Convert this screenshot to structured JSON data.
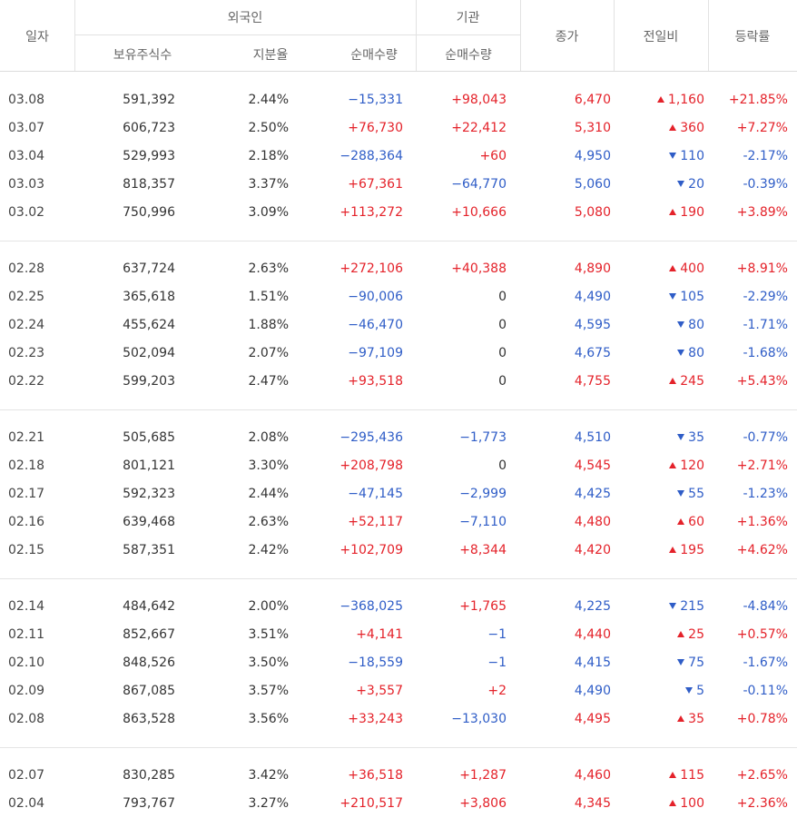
{
  "header": {
    "date": "일자",
    "foreign": "외국인",
    "institution": "기관",
    "holdings": "보유주식수",
    "ratio": "지분율",
    "foreign_net": "순매수량",
    "inst_net": "순매수량",
    "close": "종가",
    "diff": "전일비",
    "rate": "등락률"
  },
  "colors": {
    "up": "#e4222a",
    "down": "#2f5dc7"
  },
  "groups": [
    [
      {
        "date": "03.08",
        "holdings": "591,392",
        "ratio": "2.44%",
        "fnet": "−15,331",
        "inet": "+98,043",
        "close": "6,470",
        "diff": "1,160",
        "dir": "up",
        "rate": "+21.85%"
      },
      {
        "date": "03.07",
        "holdings": "606,723",
        "ratio": "2.50%",
        "fnet": "+76,730",
        "inet": "+22,412",
        "close": "5,310",
        "diff": "360",
        "dir": "up",
        "rate": "+7.27%"
      },
      {
        "date": "03.04",
        "holdings": "529,993",
        "ratio": "2.18%",
        "fnet": "−288,364",
        "inet": "+60",
        "close": "4,950",
        "diff": "110",
        "dir": "down",
        "rate": "-2.17%"
      },
      {
        "date": "03.03",
        "holdings": "818,357",
        "ratio": "3.37%",
        "fnet": "+67,361",
        "inet": "−64,770",
        "close": "5,060",
        "diff": "20",
        "dir": "down",
        "rate": "-0.39%"
      },
      {
        "date": "03.02",
        "holdings": "750,996",
        "ratio": "3.09%",
        "fnet": "+113,272",
        "inet": "+10,666",
        "close": "5,080",
        "diff": "190",
        "dir": "up",
        "rate": "+3.89%"
      }
    ],
    [
      {
        "date": "02.28",
        "holdings": "637,724",
        "ratio": "2.63%",
        "fnet": "+272,106",
        "inet": "+40,388",
        "close": "4,890",
        "diff": "400",
        "dir": "up",
        "rate": "+8.91%"
      },
      {
        "date": "02.25",
        "holdings": "365,618",
        "ratio": "1.51%",
        "fnet": "−90,006",
        "inet": "0",
        "close": "4,490",
        "diff": "105",
        "dir": "down",
        "rate": "-2.29%"
      },
      {
        "date": "02.24",
        "holdings": "455,624",
        "ratio": "1.88%",
        "fnet": "−46,470",
        "inet": "0",
        "close": "4,595",
        "diff": "80",
        "dir": "down",
        "rate": "-1.71%"
      },
      {
        "date": "02.23",
        "holdings": "502,094",
        "ratio": "2.07%",
        "fnet": "−97,109",
        "inet": "0",
        "close": "4,675",
        "diff": "80",
        "dir": "down",
        "rate": "-1.68%"
      },
      {
        "date": "02.22",
        "holdings": "599,203",
        "ratio": "2.47%",
        "fnet": "+93,518",
        "inet": "0",
        "close": "4,755",
        "diff": "245",
        "dir": "up",
        "rate": "+5.43%"
      }
    ],
    [
      {
        "date": "02.21",
        "holdings": "505,685",
        "ratio": "2.08%",
        "fnet": "−295,436",
        "inet": "−1,773",
        "close": "4,510",
        "diff": "35",
        "dir": "down",
        "rate": "-0.77%"
      },
      {
        "date": "02.18",
        "holdings": "801,121",
        "ratio": "3.30%",
        "fnet": "+208,798",
        "inet": "0",
        "close": "4,545",
        "diff": "120",
        "dir": "up",
        "rate": "+2.71%"
      },
      {
        "date": "02.17",
        "holdings": "592,323",
        "ratio": "2.44%",
        "fnet": "−47,145",
        "inet": "−2,999",
        "close": "4,425",
        "diff": "55",
        "dir": "down",
        "rate": "-1.23%"
      },
      {
        "date": "02.16",
        "holdings": "639,468",
        "ratio": "2.63%",
        "fnet": "+52,117",
        "inet": "−7,110",
        "close": "4,480",
        "diff": "60",
        "dir": "up",
        "rate": "+1.36%"
      },
      {
        "date": "02.15",
        "holdings": "587,351",
        "ratio": "2.42%",
        "fnet": "+102,709",
        "inet": "+8,344",
        "close": "4,420",
        "diff": "195",
        "dir": "up",
        "rate": "+4.62%"
      }
    ],
    [
      {
        "date": "02.14",
        "holdings": "484,642",
        "ratio": "2.00%",
        "fnet": "−368,025",
        "inet": "+1,765",
        "close": "4,225",
        "diff": "215",
        "dir": "down",
        "rate": "-4.84%"
      },
      {
        "date": "02.11",
        "holdings": "852,667",
        "ratio": "3.51%",
        "fnet": "+4,141",
        "inet": "−1",
        "close": "4,440",
        "diff": "25",
        "dir": "up",
        "rate": "+0.57%"
      },
      {
        "date": "02.10",
        "holdings": "848,526",
        "ratio": "3.50%",
        "fnet": "−18,559",
        "inet": "−1",
        "close": "4,415",
        "diff": "75",
        "dir": "down",
        "rate": "-1.67%"
      },
      {
        "date": "02.09",
        "holdings": "867,085",
        "ratio": "3.57%",
        "fnet": "+3,557",
        "inet": "+2",
        "close": "4,490",
        "diff": "5",
        "dir": "down",
        "rate": "-0.11%"
      },
      {
        "date": "02.08",
        "holdings": "863,528",
        "ratio": "3.56%",
        "fnet": "+33,243",
        "inet": "−13,030",
        "close": "4,495",
        "diff": "35",
        "dir": "up",
        "rate": "+0.78%"
      }
    ],
    [
      {
        "date": "02.07",
        "holdings": "830,285",
        "ratio": "3.42%",
        "fnet": "+36,518",
        "inet": "+1,287",
        "close": "4,460",
        "diff": "115",
        "dir": "up",
        "rate": "+2.65%"
      },
      {
        "date": "02.04",
        "holdings": "793,767",
        "ratio": "3.27%",
        "fnet": "+210,517",
        "inet": "+3,806",
        "close": "4,345",
        "diff": "100",
        "dir": "up",
        "rate": "+2.36%"
      }
    ]
  ]
}
